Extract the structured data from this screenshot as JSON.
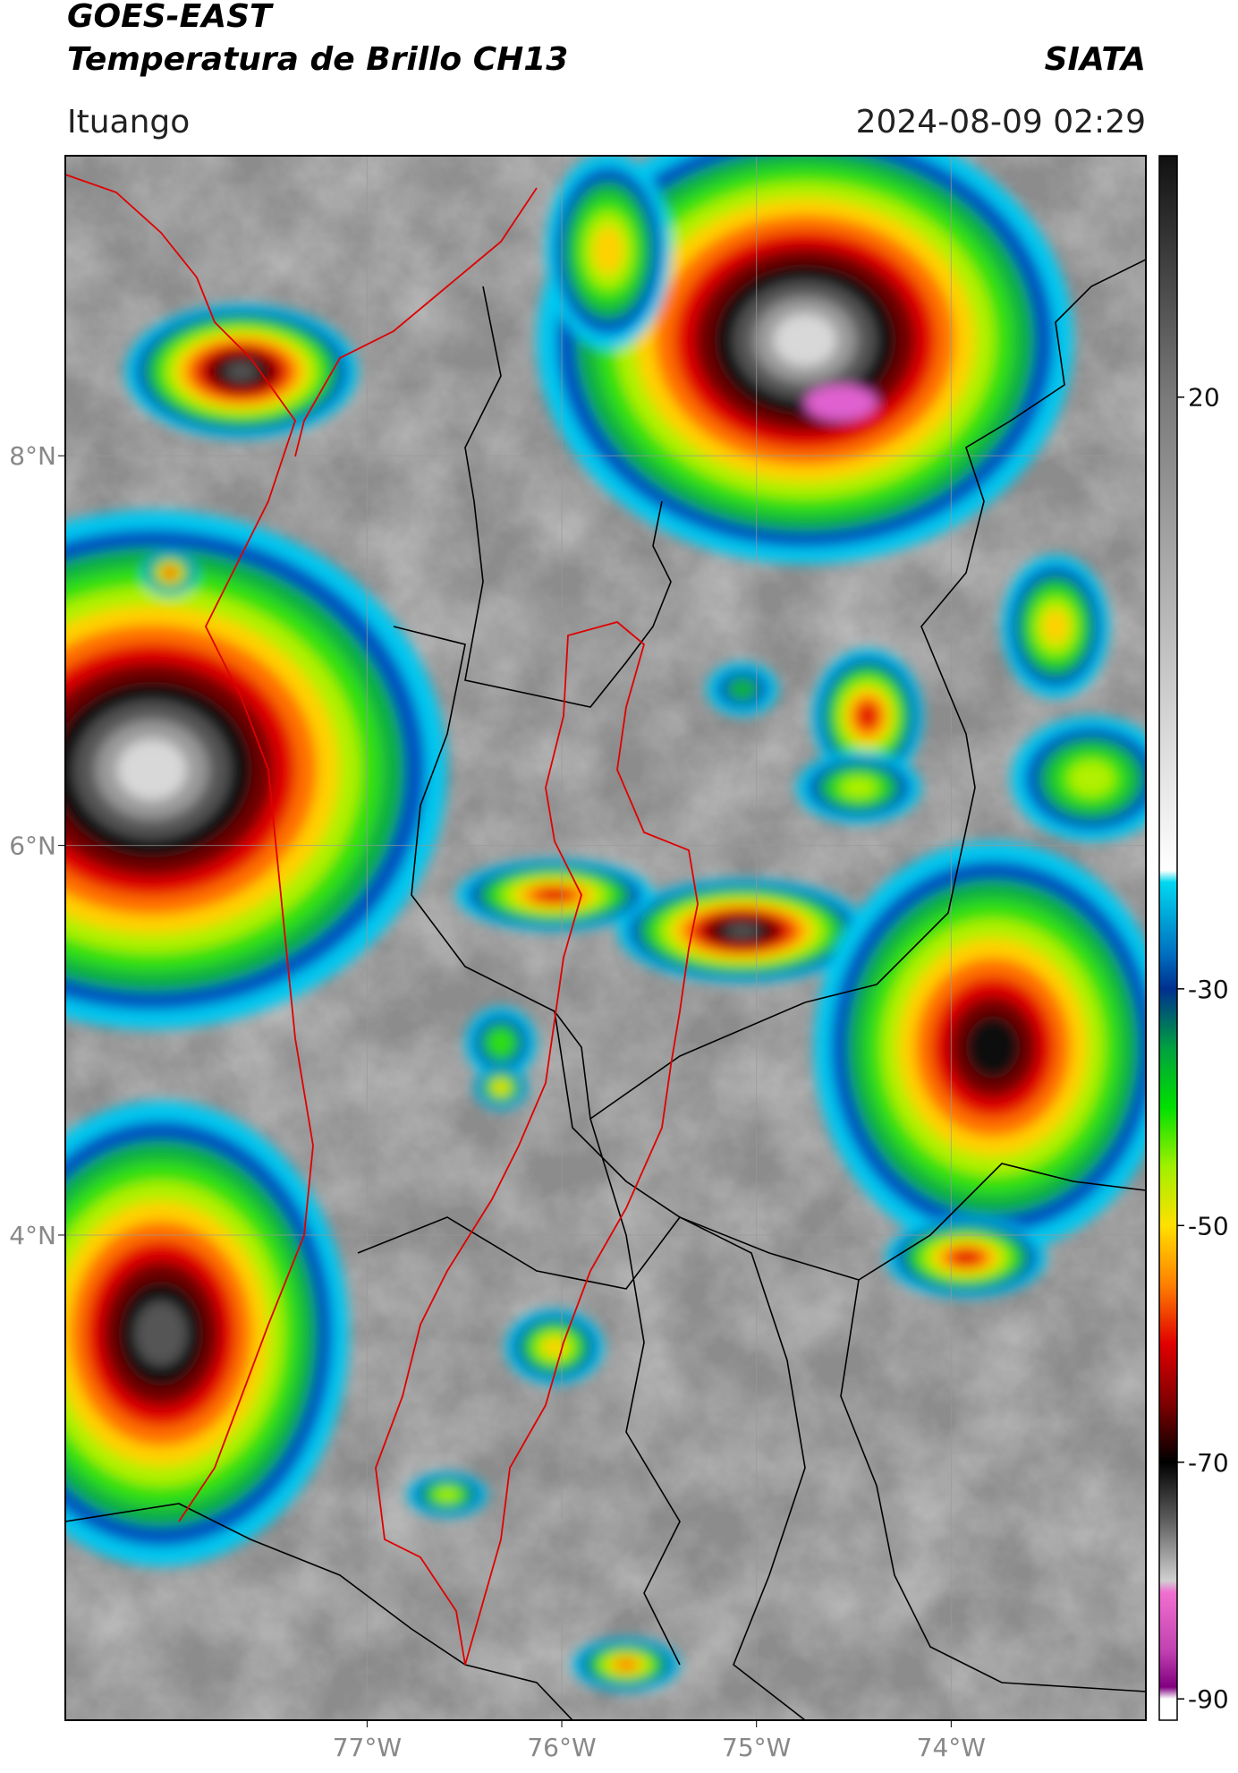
{
  "header": {
    "title": "GOES-EAST",
    "subtitle": "Temperatura de Brillo CH13",
    "source": "SIATA",
    "region": "Ituango",
    "datetime": "2024-08-09 02:29"
  },
  "map": {
    "xlim": [
      -78.55,
      -73.0
    ],
    "ylim": [
      1.51,
      9.54
    ],
    "xticks": [
      {
        "value": -77,
        "label": "77°W"
      },
      {
        "value": -76,
        "label": "76°W"
      },
      {
        "value": -75,
        "label": "75°W"
      },
      {
        "value": -74,
        "label": "74°W"
      }
    ],
    "yticks": [
      {
        "value": 8,
        "label": "8°N"
      },
      {
        "value": 6,
        "label": "6°N"
      },
      {
        "value": 4,
        "label": "4°N"
      }
    ],
    "grid": true
  },
  "colorbar": {
    "lim": [
      -91.8,
      40.4
    ],
    "ticks": [
      20,
      -30,
      -50,
      -70,
      -90
    ],
    "colormap": [
      [
        40.4,
        "#111111"
      ],
      [
        20,
        "#7a7a7a"
      ],
      [
        -20,
        "#ffffff"
      ],
      [
        -21,
        "#00d8f0"
      ],
      [
        -27,
        "#0070c0"
      ],
      [
        -30,
        "#003090"
      ],
      [
        -35,
        "#00a040"
      ],
      [
        -40,
        "#00e000"
      ],
      [
        -45,
        "#a0f000"
      ],
      [
        -50,
        "#ffe000"
      ],
      [
        -55,
        "#ff8000"
      ],
      [
        -60,
        "#e00000"
      ],
      [
        -65,
        "#800000"
      ],
      [
        -70,
        "#000000"
      ],
      [
        -75,
        "#606060"
      ],
      [
        -80,
        "#d0d0d0"
      ],
      [
        -81,
        "#f070d0"
      ],
      [
        -86,
        "#c040b0"
      ],
      [
        -89,
        "#800080"
      ],
      [
        -90,
        "#ffffff"
      ],
      [
        -91.8,
        "#ffffff"
      ]
    ]
  }
}
